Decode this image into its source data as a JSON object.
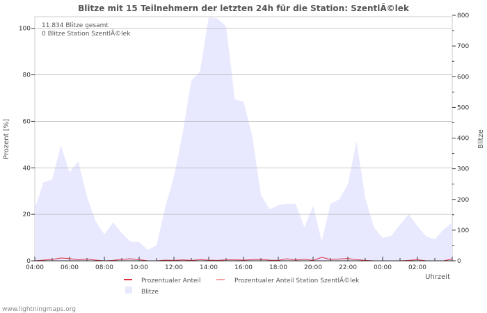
{
  "chart_data": {
    "type": "area",
    "title": "Blitze mit 15 Teilnehmern der letzten 24h für die Station: SzentlÃ©lek",
    "annotations": [
      "11.834 Blitze gesamt",
      "0 Blitze Station SzentlÃ©lek"
    ],
    "xlabel": "Uhrzeit",
    "ylabel_left": "Prozent   [%]",
    "ylabel_right": "Blitze",
    "ylim_left": [
      0,
      105
    ],
    "ylim_right": [
      0,
      800
    ],
    "yticks_left": [
      0,
      20,
      40,
      60,
      80,
      100
    ],
    "yticks_right": [
      0,
      100,
      200,
      300,
      400,
      500,
      600,
      700,
      800
    ],
    "xticks": [
      "04:00",
      "06:00",
      "08:00",
      "10:00",
      "12:00",
      "14:00",
      "16:00",
      "18:00",
      "20:00",
      "22:00",
      "00:00",
      "02:00"
    ],
    "x_step_hours": 0.5,
    "grid": true,
    "legend_position": "bottom",
    "series": [
      {
        "name": "Prozentualer Anteil",
        "color": "#e03040",
        "axis": "left",
        "values": [
          0,
          0.3,
          0.6,
          1.2,
          1.0,
          0.4,
          0.8,
          0.3,
          0,
          0.2,
          0.6,
          0.9,
          0.5,
          0,
          0,
          0.3,
          0.2,
          0.4,
          0.2,
          0.5,
          0.3,
          0.2,
          0.4,
          0.4,
          0.3,
          0.5,
          0.6,
          0.3,
          0.2,
          0.9,
          0.3,
          0.7,
          0.2,
          1.5,
          0.6,
          0.8,
          1.0,
          0.5,
          0.2,
          0,
          0,
          0,
          0,
          0.2,
          0.5,
          0,
          0,
          0,
          0.8
        ]
      },
      {
        "name": "Prozentualer Anteil Station SzentlÃ©lek",
        "color": "#f4a0a0",
        "axis": "left",
        "values": [
          0,
          0,
          0,
          0,
          0,
          0,
          0,
          0,
          0,
          0,
          0,
          0,
          0,
          0,
          0,
          0,
          0,
          0,
          0,
          0,
          0,
          0,
          0,
          0,
          0,
          0,
          0,
          0,
          0,
          0,
          0,
          0,
          0,
          0,
          0,
          0,
          0,
          0,
          0,
          0,
          0,
          0,
          0,
          0,
          0,
          0,
          0,
          0,
          0
        ]
      },
      {
        "name": "Blitze",
        "color": "#e8e8ff",
        "axis": "right",
        "values": [
          170,
          256,
          265,
          376,
          288,
          324,
          209,
          129,
          86,
          125,
          91,
          63,
          61,
          36,
          50,
          175,
          274,
          415,
          587,
          617,
          794,
          789,
          764,
          526,
          519,
          408,
          215,
          168,
          181,
          186,
          186,
          109,
          179,
          63,
          186,
          200,
          249,
          390,
          204,
          109,
          75,
          82,
          118,
          152,
          113,
          79,
          70,
          102,
          125
        ]
      }
    ]
  },
  "footer": "www.lightningmaps.org"
}
